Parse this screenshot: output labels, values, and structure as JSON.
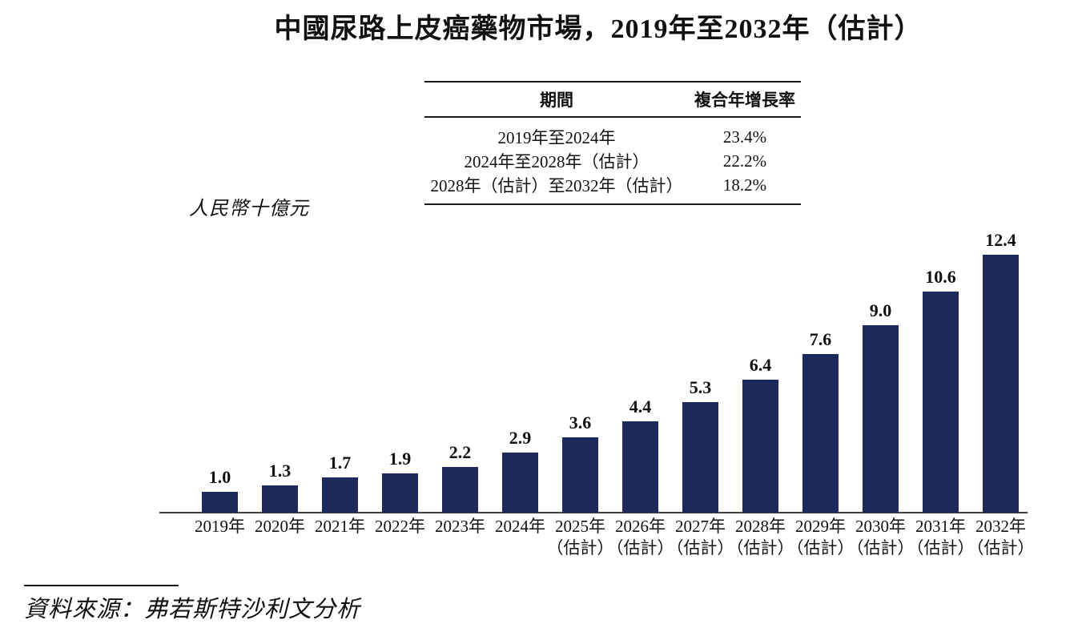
{
  "title": "中國尿路上皮癌藥物市場，2019年至2032年（估計）",
  "cagr_table": {
    "headers": {
      "period": "期間",
      "cagr": "複合年增長率"
    },
    "rows": [
      {
        "period": "2019年至2024年",
        "cagr": "23.4%"
      },
      {
        "period": "2024年至2028年（估計）",
        "cagr": "22.2%"
      },
      {
        "period": "2028年（估計）至2032年（估計）",
        "cagr": "18.2%"
      }
    ]
  },
  "y_axis_unit": "人民幣十億元",
  "source_note": "資料來源：弗若斯特沙利文分析",
  "colors": {
    "bar": "#1f2a5c",
    "axis": "#404040",
    "text": "#111111",
    "rule": "#1a1a1a"
  },
  "chart_data": {
    "type": "bar",
    "title": "中國尿路上皮癌藥物市場，2019年至2032年（估計）",
    "ylabel": "人民幣十億元",
    "xlabel": "",
    "ylim": [
      0,
      13
    ],
    "grid": false,
    "legend": false,
    "bar_color": "#1f2a5c",
    "categories": [
      "2019年",
      "2020年",
      "2021年",
      "2022年",
      "2023年",
      "2024年",
      "2025年（估計）",
      "2026年（估計）",
      "2027年（估計）",
      "2028年（估計）",
      "2029年（估計）",
      "2030年（估計）",
      "2031年（估計）",
      "2032年（估計）"
    ],
    "values": [
      1.0,
      1.3,
      1.7,
      1.9,
      2.2,
      2.9,
      3.6,
      4.4,
      5.3,
      6.4,
      7.6,
      9.0,
      10.6,
      12.4
    ],
    "data_labels": [
      "1.0",
      "1.3",
      "1.7",
      "1.9",
      "2.2",
      "2.9",
      "3.6",
      "4.4",
      "5.3",
      "6.4",
      "7.6",
      "9.0",
      "10.6",
      "12.4"
    ]
  }
}
